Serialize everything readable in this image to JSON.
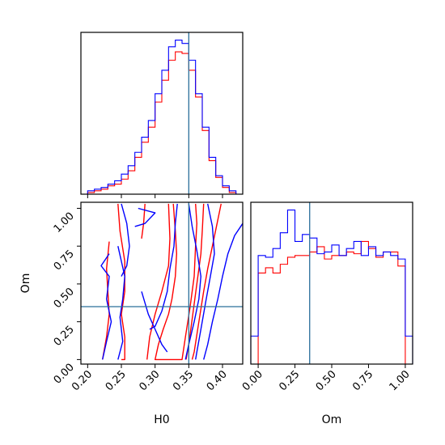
{
  "chart_data": [
    {
      "type": "histogram",
      "panel": "marginal-H0",
      "xlim": [
        0.19,
        0.43
      ],
      "bin_edges": [
        0.2,
        0.21,
        0.22,
        0.23,
        0.24,
        0.25,
        0.26,
        0.27,
        0.28,
        0.29,
        0.3,
        0.31,
        0.32,
        0.33,
        0.34,
        0.35,
        0.36,
        0.37,
        0.38,
        0.39,
        0.4,
        0.41,
        0.42
      ],
      "truth": 0.35,
      "colors": {
        "red": "#ff0000",
        "blue": "#0000ff",
        "truth": "#2a6f9a"
      },
      "series": [
        {
          "color": "red",
          "counts": [
            1,
            2,
            3,
            5,
            6,
            9,
            14,
            22,
            31,
            40,
            55,
            68,
            80,
            85,
            84,
            74,
            58,
            38,
            20,
            10,
            4,
            1
          ]
        },
        {
          "color": "blue",
          "counts": [
            2,
            3,
            4,
            6,
            8,
            12,
            17,
            25,
            34,
            44,
            60,
            74,
            88,
            92,
            90,
            80,
            60,
            40,
            22,
            11,
            5,
            2
          ]
        }
      ]
    },
    {
      "type": "contour",
      "panel": "joint-H0-Om",
      "xlabel": "H0",
      "ylabel": "Om",
      "xlim": [
        0.19,
        0.43
      ],
      "ylim": [
        -0.03,
        1.04
      ],
      "xticks": [
        "0.20",
        "0.25",
        "0.30",
        "0.35",
        "0.40"
      ],
      "xtick_values": [
        0.2,
        0.25,
        0.3,
        0.35,
        0.4
      ],
      "yticks": [
        "0.00",
        "0.25",
        "0.50",
        "0.75",
        "1.00"
      ],
      "ytick_values": [
        0.0,
        0.25,
        0.5,
        0.75,
        1.0
      ],
      "truth": {
        "x": 0.35,
        "y": 0.35
      },
      "series": [
        {
          "color": "red",
          "contours": [
            [
              [
                0.245,
                1.03
              ],
              [
                0.248,
                0.85
              ],
              [
                0.255,
                0.65
              ],
              [
                0.255,
                0.45
              ],
              [
                0.25,
                0.3
              ],
              [
                0.255,
                0.15
              ],
              [
                0.255,
                0.0
              ],
              [
                0.25,
                0.0
              ]
            ],
            [
              [
                0.232,
                0.78
              ],
              [
                0.228,
                0.6
              ],
              [
                0.23,
                0.45
              ],
              [
                0.232,
                0.3
              ],
              [
                0.228,
                0.15
              ],
              [
                0.222,
                0.0
              ]
            ],
            [
              [
                0.285,
                1.03
              ],
              [
                0.283,
                0.9
              ],
              [
                0.28,
                0.8
              ]
            ],
            [
              [
                0.327,
                1.03
              ],
              [
                0.33,
                0.85
              ],
              [
                0.332,
                0.7
              ],
              [
                0.33,
                0.55
              ],
              [
                0.325,
                0.4
              ],
              [
                0.32,
                0.3
              ],
              [
                0.312,
                0.2
              ],
              [
                0.305,
                0.1
              ],
              [
                0.3,
                0.0
              ],
              [
                0.34,
                0.0
              ],
              [
                0.345,
                0.15
              ],
              [
                0.352,
                0.35
              ],
              [
                0.358,
                0.55
              ],
              [
                0.36,
                0.75
              ],
              [
                0.362,
                0.9
              ],
              [
                0.36,
                1.03
              ]
            ],
            [
              [
                0.372,
                1.03
              ],
              [
                0.37,
                0.85
              ],
              [
                0.368,
                0.7
              ],
              [
                0.362,
                0.5
              ],
              [
                0.356,
                0.3
              ],
              [
                0.35,
                0.1
              ],
              [
                0.346,
                0.0
              ]
            ],
            [
              [
                0.398,
                1.03
              ],
              [
                0.392,
                0.9
              ],
              [
                0.385,
                0.75
              ],
              [
                0.378,
                0.6
              ],
              [
                0.372,
                0.45
              ],
              [
                0.365,
                0.25
              ],
              [
                0.358,
                0.05
              ],
              [
                0.355,
                0.0
              ]
            ],
            [
              [
                0.288,
                0.0
              ],
              [
                0.292,
                0.15
              ],
              [
                0.3,
                0.3
              ],
              [
                0.31,
                0.45
              ],
              [
                0.32,
                0.62
              ],
              [
                0.322,
                0.8
              ],
              [
                0.32,
                1.03
              ]
            ]
          ]
        },
        {
          "color": "blue",
          "contours": [
            [
              [
                0.25,
                1.03
              ],
              [
                0.258,
                0.9
              ],
              [
                0.262,
                0.75
              ],
              [
                0.258,
                0.62
              ],
              [
                0.25,
                0.55
              ]
            ],
            [
              [
                0.232,
                0.7
              ],
              [
                0.22,
                0.62
              ],
              [
                0.232,
                0.55
              ],
              [
                0.228,
                0.4
              ],
              [
                0.235,
                0.25
              ],
              [
                0.228,
                0.12
              ],
              [
                0.222,
                0.0
              ]
            ],
            [
              [
                0.245,
                0.75
              ],
              [
                0.25,
                0.65
              ],
              [
                0.255,
                0.55
              ],
              [
                0.252,
                0.4
              ],
              [
                0.248,
                0.28
              ],
              [
                0.252,
                0.12
              ],
              [
                0.245,
                0.0
              ]
            ],
            [
              [
                0.275,
                1.0
              ],
              [
                0.3,
                0.97
              ],
              [
                0.285,
                0.9
              ],
              [
                0.27,
                0.88
              ]
            ],
            [
              [
                0.292,
                0.2
              ],
              [
                0.3,
                0.22
              ],
              [
                0.31,
                0.32
              ],
              [
                0.318,
                0.45
              ],
              [
                0.322,
                0.6
              ],
              [
                0.328,
                0.75
              ],
              [
                0.33,
                0.9
              ],
              [
                0.333,
                1.03
              ]
            ],
            [
              [
                0.35,
                1.03
              ],
              [
                0.355,
                0.88
              ],
              [
                0.362,
                0.72
              ],
              [
                0.368,
                0.55
              ],
              [
                0.365,
                0.4
              ],
              [
                0.358,
                0.25
              ],
              [
                0.35,
                0.1
              ],
              [
                0.345,
                0.0
              ]
            ],
            [
              [
                0.378,
                1.03
              ],
              [
                0.385,
                0.88
              ],
              [
                0.388,
                0.7
              ],
              [
                0.382,
                0.55
              ],
              [
                0.375,
                0.38
              ],
              [
                0.368,
                0.2
              ],
              [
                0.362,
                0.05
              ],
              [
                0.36,
                0.0
              ]
            ],
            [
              [
                0.43,
                0.9
              ],
              [
                0.418,
                0.82
              ],
              [
                0.408,
                0.7
              ],
              [
                0.4,
                0.55
              ],
              [
                0.393,
                0.4
              ],
              [
                0.385,
                0.25
              ],
              [
                0.378,
                0.1
              ],
              [
                0.372,
                0.0
              ]
            ],
            [
              [
                0.28,
                0.45
              ],
              [
                0.29,
                0.3
              ],
              [
                0.3,
                0.2
              ],
              [
                0.31,
                0.1
              ],
              [
                0.318,
                0.05
              ]
            ]
          ]
        }
      ]
    },
    {
      "type": "histogram",
      "panel": "marginal-Om",
      "xlabel": "Om",
      "xlim": [
        -0.05,
        1.05
      ],
      "xticks": [
        "0.00",
        "0.25",
        "0.50",
        "0.75",
        "1.00"
      ],
      "xtick_values": [
        0.0,
        0.25,
        0.5,
        0.75,
        1.0
      ],
      "bin_edges": [
        -0.05,
        0.0,
        0.05,
        0.1,
        0.15,
        0.2,
        0.25,
        0.3,
        0.35,
        0.4,
        0.45,
        0.5,
        0.55,
        0.6,
        0.65,
        0.7,
        0.75,
        0.8,
        0.85,
        0.9,
        0.95,
        1.0,
        1.05
      ],
      "truth": 0.35,
      "series": [
        {
          "color": "red",
          "counts": [
            0,
            52,
            55,
            52,
            57,
            61,
            62,
            62,
            64,
            67,
            60,
            62,
            62,
            64,
            63,
            70,
            66,
            61,
            64,
            64,
            56,
            0
          ]
        },
        {
          "color": "blue",
          "counts": [
            16,
            62,
            61,
            66,
            75,
            88,
            70,
            74,
            72,
            63,
            64,
            68,
            62,
            66,
            70,
            62,
            67,
            62,
            64,
            62,
            60,
            16
          ]
        }
      ]
    }
  ]
}
